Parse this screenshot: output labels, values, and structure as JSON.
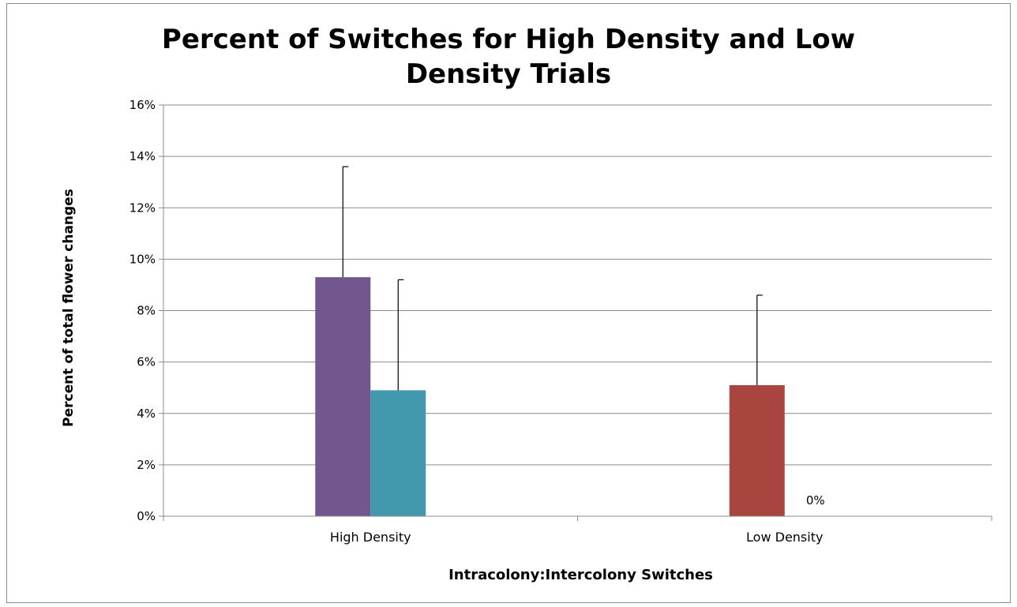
{
  "chart_data": {
    "type": "bar",
    "title_lines": [
      "Percent of Switches for High Density and Low",
      "Density Trials"
    ],
    "xlabel": "Intracolony:Intercolony Switches",
    "ylabel": "Percent of total flower changes",
    "categories": [
      "High Density",
      "Low Density"
    ],
    "series": [
      {
        "color": "#71578e",
        "values": [
          0.093,
          null
        ],
        "error_plus": [
          0.043,
          null
        ]
      },
      {
        "color": "#4299ad",
        "values": [
          0.049,
          null
        ],
        "error_plus": [
          0.043,
          null
        ]
      },
      {
        "color": "#a9453f",
        "values": [
          null,
          0.051
        ],
        "error_plus": [
          null,
          0.035
        ]
      },
      {
        "color": "#7f9a48",
        "values": [
          null,
          0.0
        ],
        "error_plus": [
          null,
          null
        ],
        "data_labels": [
          null,
          "0%"
        ]
      }
    ],
    "ylim": [
      0,
      0.16
    ],
    "yticks": [
      0,
      0.02,
      0.04,
      0.06,
      0.08,
      0.1,
      0.12,
      0.14,
      0.16
    ],
    "ytick_labels": [
      "0%",
      "2%",
      "4%",
      "6%",
      "8%",
      "10%",
      "12%",
      "14%",
      "16%"
    ],
    "grid": true,
    "legend": "none"
  }
}
